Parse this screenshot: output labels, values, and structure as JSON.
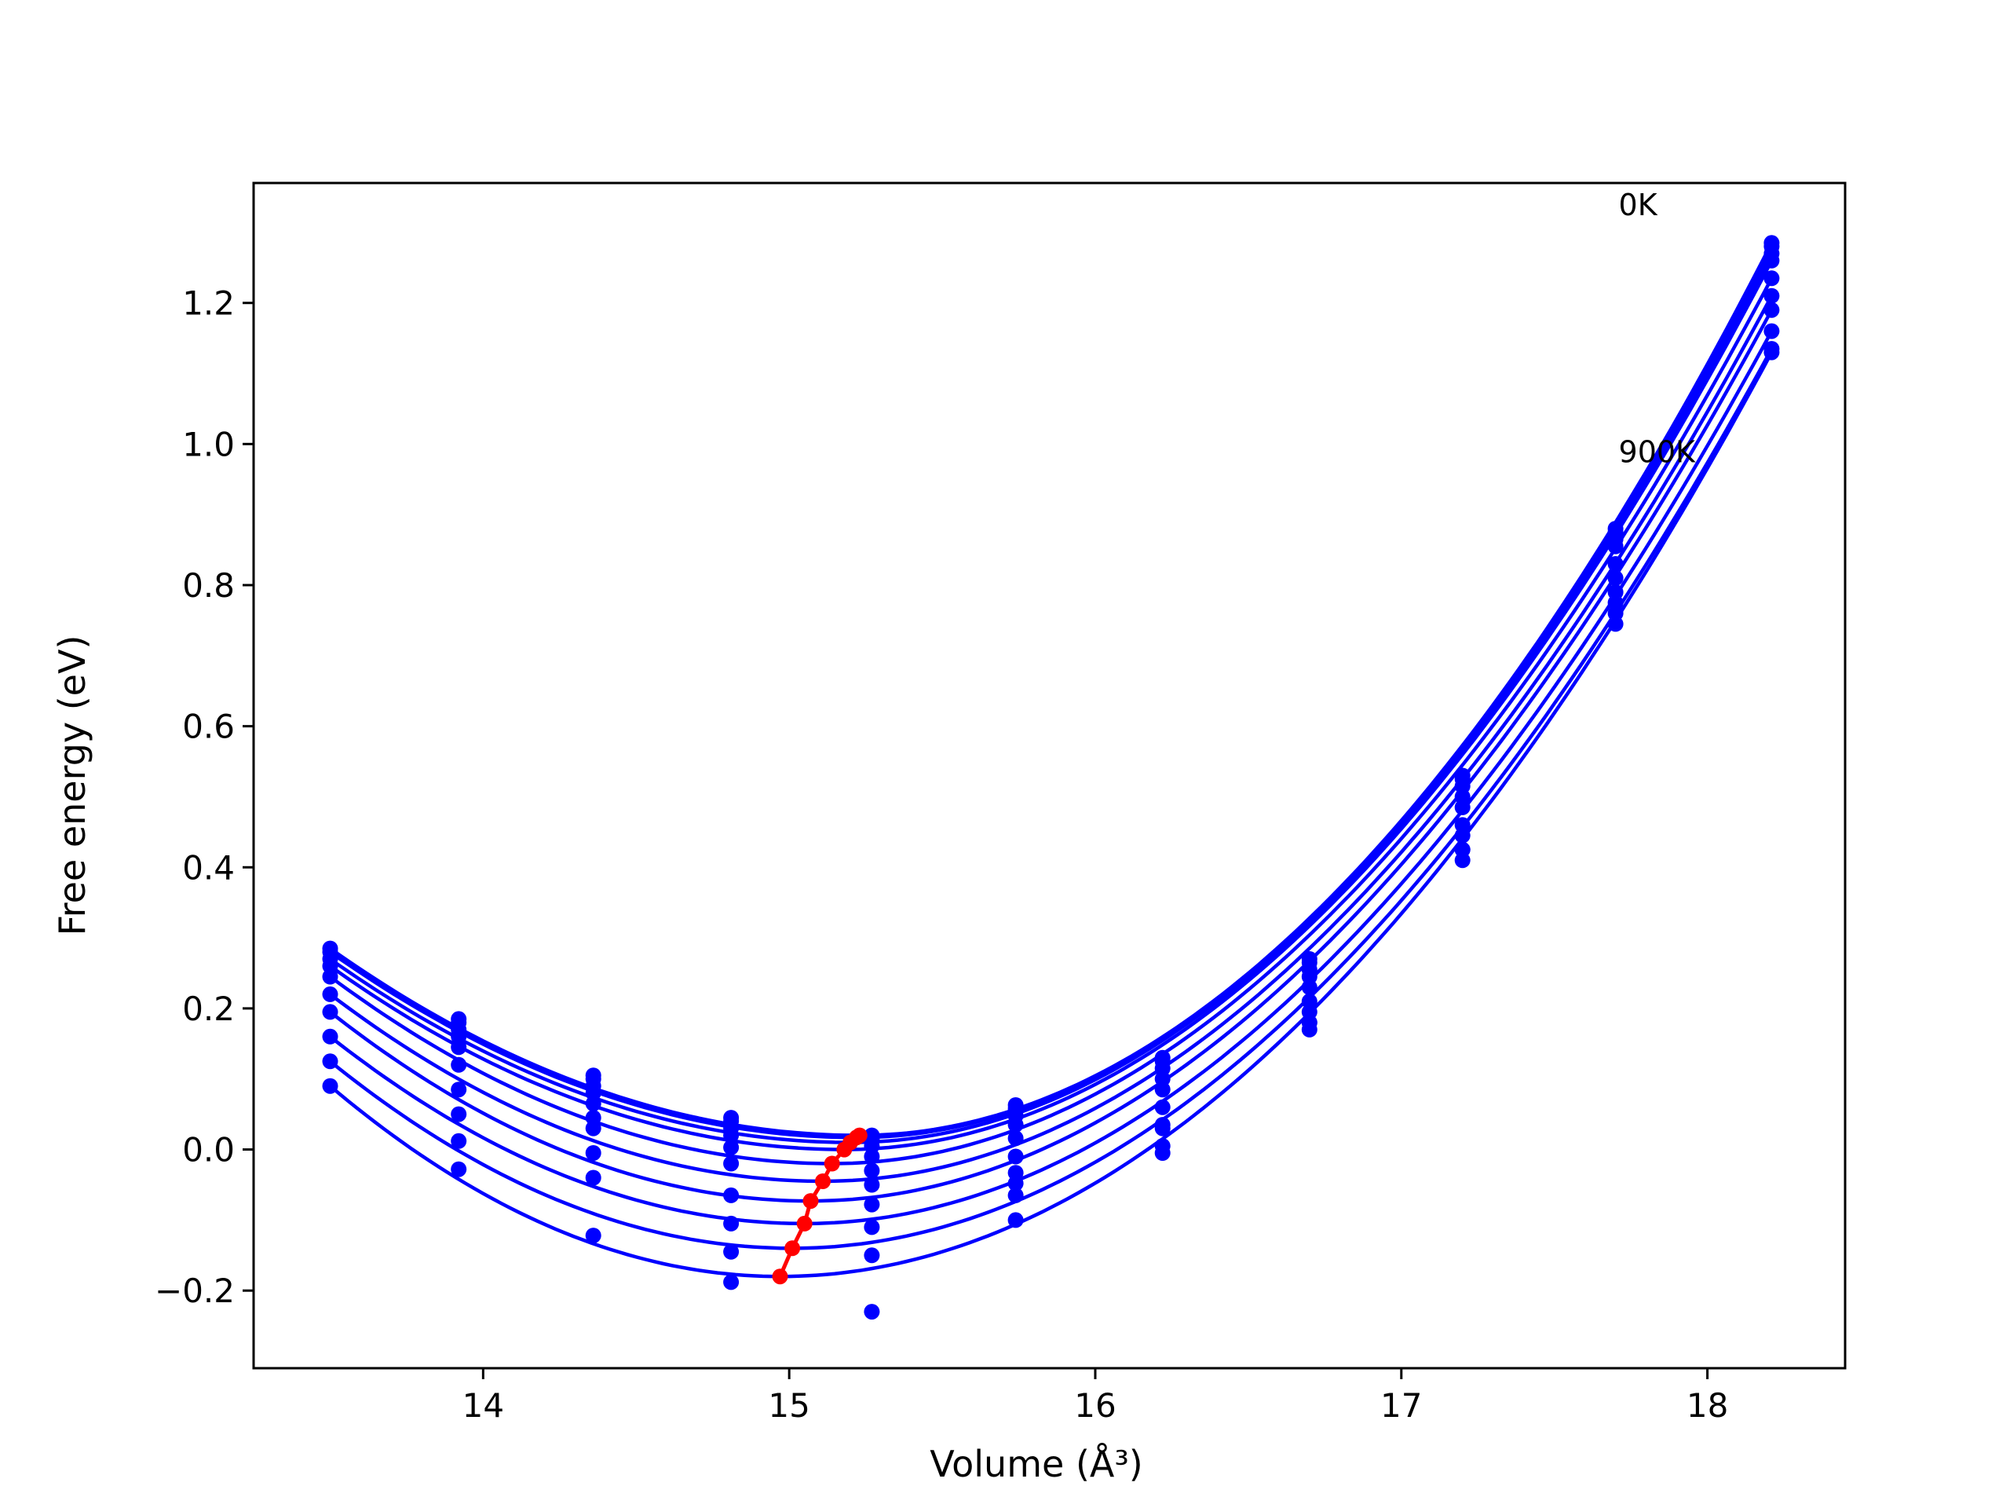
{
  "chart_data": {
    "type": "line",
    "xlabel": "Volume (Å³)",
    "ylabel": "Free energy (eV)",
    "xlim": [
      13.25,
      18.45
    ],
    "ylim": [
      -0.31,
      1.37
    ],
    "xticks": [
      14,
      15,
      16,
      17,
      18
    ],
    "yticks": [
      -0.2,
      0.0,
      0.2,
      0.4,
      0.6,
      0.8,
      1.0,
      1.2
    ],
    "ytick_labels": [
      "−0.2",
      "0.0",
      "0.2",
      "0.4",
      "0.6",
      "0.8",
      "1.0",
      "1.2"
    ],
    "grid": false,
    "annotations": [
      {
        "text": "0K",
        "x": 17.71,
        "y": 1.34
      },
      {
        "text": "900K",
        "x": 17.71,
        "y": 0.99
      }
    ],
    "colors": {
      "curves": "#0000ff",
      "minimum_path": "#ff0000"
    },
    "volumes": [
      13.5,
      13.92,
      14.36,
      14.81,
      15.27,
      15.74,
      16.22,
      16.7,
      17.2,
      17.7,
      18.21
    ],
    "series": [
      {
        "fit_min_x": 15.23,
        "fit_min_y": 0.02,
        "fit_left": 0.285,
        "fit_right": 1.285,
        "values": [
          0.285,
          0.185,
          0.105,
          0.045,
          0.02,
          0.063,
          0.13,
          0.27,
          0.53,
          0.88,
          1.285
        ]
      },
      {
        "fit_min_x": 15.22,
        "fit_min_y": 0.017,
        "fit_left": 0.28,
        "fit_right": 1.28,
        "values": [
          0.28,
          0.18,
          0.1,
          0.04,
          0.015,
          0.058,
          0.125,
          0.265,
          0.525,
          0.875,
          1.28
        ]
      },
      {
        "fit_min_x": 15.2,
        "fit_min_y": 0.01,
        "fit_left": 0.27,
        "fit_right": 1.27,
        "values": [
          0.27,
          0.17,
          0.09,
          0.03,
          0.005,
          0.048,
          0.115,
          0.255,
          0.515,
          0.865,
          1.27
        ]
      },
      {
        "fit_min_x": 15.18,
        "fit_min_y": 0.0,
        "fit_left": 0.26,
        "fit_right": 1.26,
        "values": [
          0.26,
          0.16,
          0.08,
          0.02,
          -0.01,
          0.035,
          0.1,
          0.245,
          0.5,
          0.855,
          1.26
        ]
      },
      {
        "fit_min_x": 15.14,
        "fit_min_y": -0.02,
        "fit_left": 0.245,
        "fit_right": 1.235,
        "values": [
          0.245,
          0.145,
          0.065,
          0.003,
          -0.03,
          0.016,
          0.085,
          0.23,
          0.485,
          0.83,
          1.235
        ]
      },
      {
        "fit_min_x": 15.11,
        "fit_min_y": -0.045,
        "fit_left": 0.22,
        "fit_right": 1.21,
        "values": [
          0.22,
          0.12,
          0.045,
          -0.02,
          -0.05,
          -0.01,
          0.06,
          0.21,
          0.46,
          0.81,
          1.21
        ]
      },
      {
        "fit_min_x": 15.07,
        "fit_min_y": -0.073,
        "fit_left": 0.195,
        "fit_right": 1.19,
        "values": [
          0.195,
          0.085,
          0.03,
          -0.065,
          -0.078,
          -0.033,
          0.035,
          0.195,
          0.445,
          0.79,
          1.19
        ]
      },
      {
        "fit_min_x": 15.05,
        "fit_min_y": -0.105,
        "fit_left": 0.16,
        "fit_right": 1.16,
        "values": [
          0.16,
          0.05,
          -0.005,
          -0.105,
          -0.11,
          -0.065,
          0.005,
          0.17,
          0.425,
          0.775,
          1.16
        ]
      },
      {
        "fit_min_x": 15.01,
        "fit_min_y": -0.14,
        "fit_left": 0.125,
        "fit_right": 1.135,
        "values": [
          0.125,
          0.012,
          -0.04,
          -0.145,
          -0.15,
          -0.1,
          -0.005,
          0.18,
          0.41,
          0.76,
          1.135
        ]
      },
      {
        "fit_min_x": 14.97,
        "fit_min_y": -0.18,
        "fit_left": 0.09,
        "fit_right": 1.13,
        "values": [
          0.09,
          -0.028,
          -0.122,
          -0.188,
          -0.23,
          -0.048,
          0.03,
          0.18,
          0.425,
          0.745,
          1.13
        ]
      }
    ],
    "minimum_path": {
      "x": [
        14.97,
        15.01,
        15.05,
        15.07,
        15.11,
        15.14,
        15.18,
        15.2,
        15.22,
        15.23
      ],
      "y": [
        -0.18,
        -0.14,
        -0.105,
        -0.073,
        -0.045,
        -0.02,
        0.0,
        0.01,
        0.017,
        0.02
      ]
    }
  }
}
